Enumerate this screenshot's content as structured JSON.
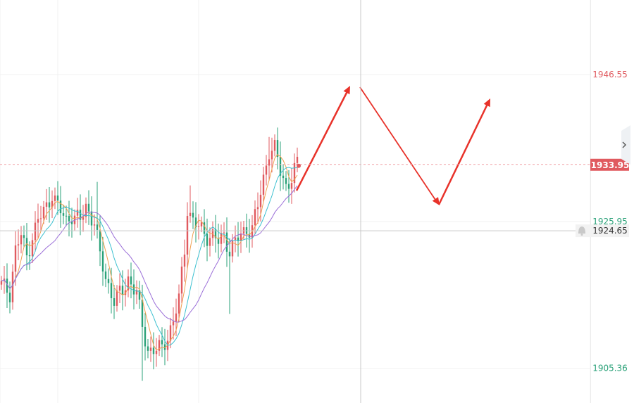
{
  "chart_data": {
    "type": "candlestick",
    "title": "",
    "xlabel": "",
    "ylabel": "",
    "ylim": [
      1900.5,
      1957.0
    ],
    "y_ticks": [
      {
        "value": 1946.55,
        "label": "1946.55",
        "color": "#e05a5f"
      },
      {
        "value": 1925.95,
        "label": "1925.95",
        "color": "#2aa178"
      },
      {
        "value": 1905.36,
        "label": "1905.36",
        "color": "#2aa178"
      }
    ],
    "current_price": {
      "value": 1933.95,
      "label": "1933.95",
      "color": "#e05a5f"
    },
    "crosshair": {
      "value": 1924.65,
      "label": "1924.65"
    },
    "grid": true,
    "legend": "none",
    "up_color": "#e05a5f",
    "down_color": "#2aa178",
    "ma_colors": [
      "#f0a050",
      "#3cc0d0",
      "#9b6fd8"
    ],
    "projection_color": "#e8322a",
    "scroll_icon": "chevron-right-icon",
    "bell_icon": "bell-icon"
  }
}
